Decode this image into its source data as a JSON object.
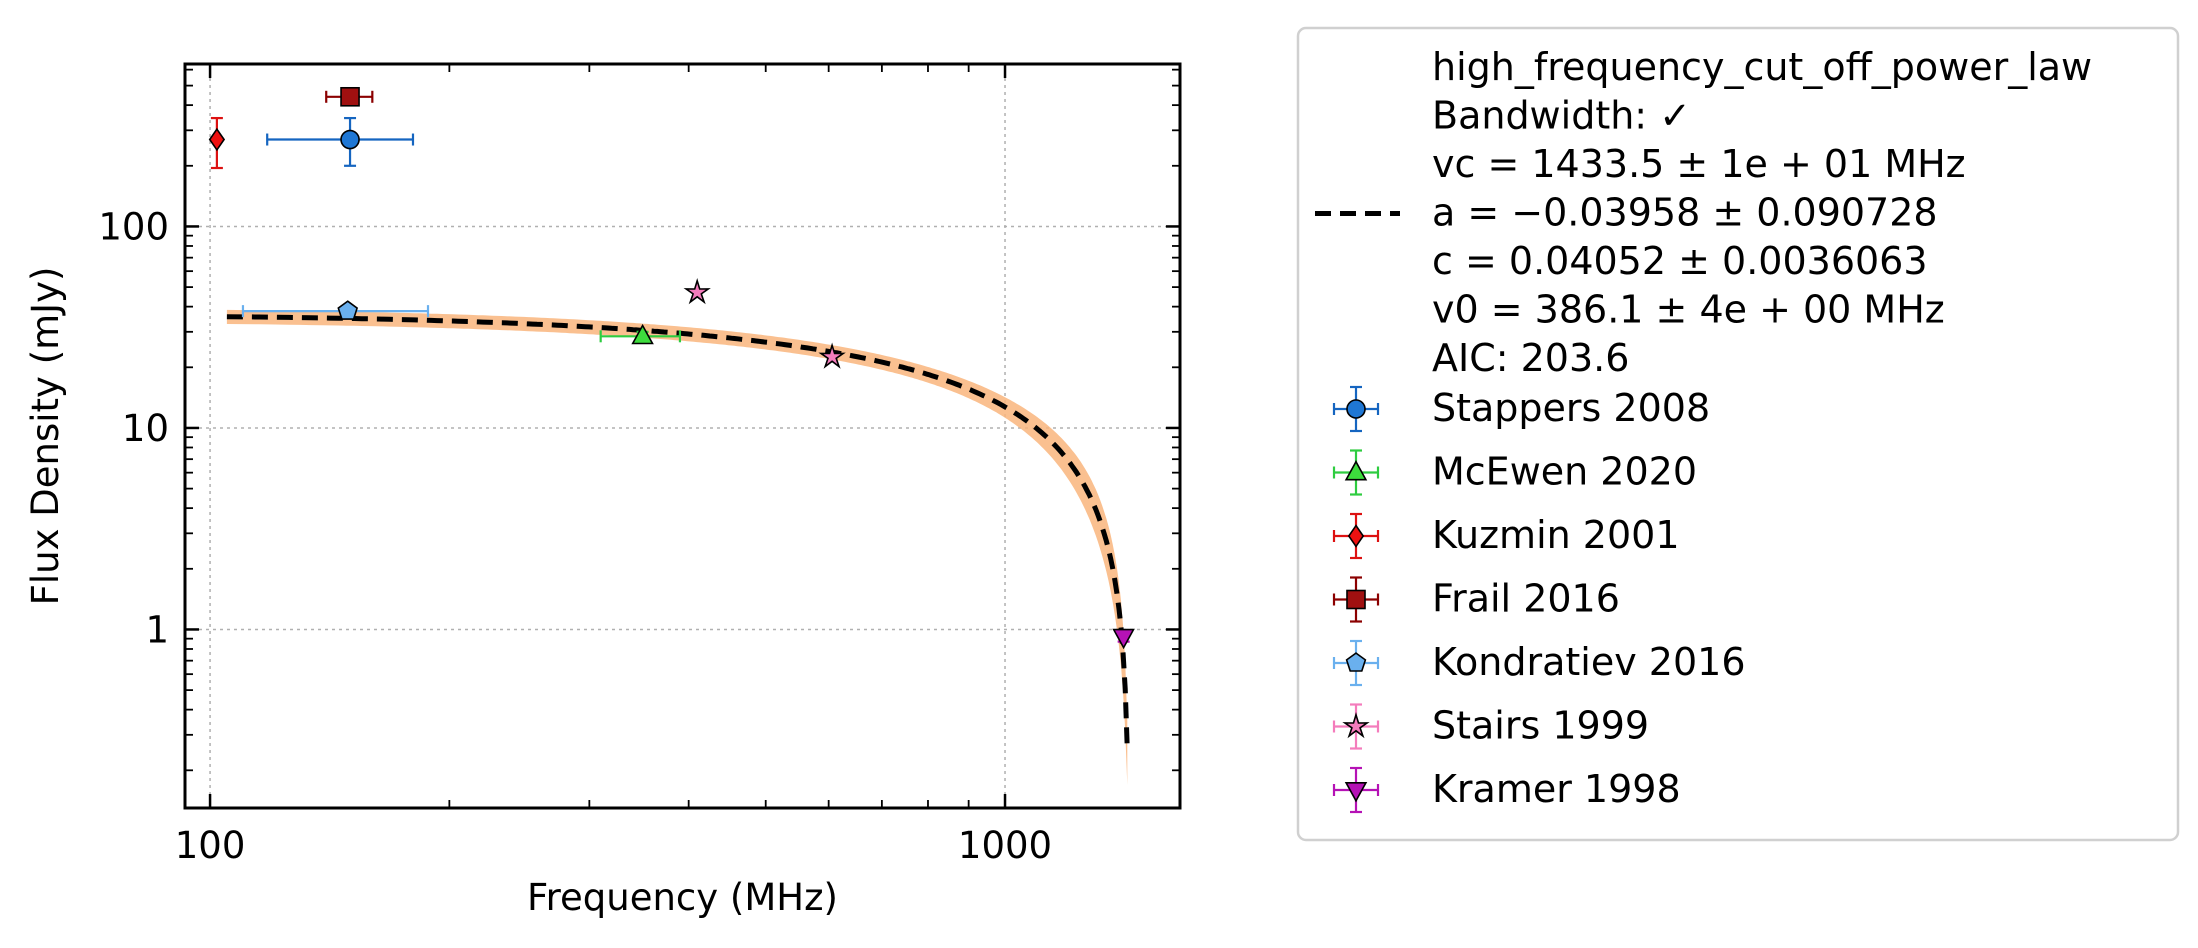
{
  "chart_data": {
    "type": "scatter",
    "xlabel": "Frequency (MHz)",
    "ylabel": "Flux Density (mJy)",
    "xscale": "log",
    "yscale": "log",
    "xlim": [
      93,
      1660
    ],
    "ylim": [
      0.13,
      640
    ],
    "x_ticks": [
      {
        "value": 100,
        "label": "100"
      },
      {
        "value": 1000,
        "label": "1000"
      }
    ],
    "y_ticks": [
      {
        "value": 1,
        "label": "1"
      },
      {
        "value": 10,
        "label": "10"
      },
      {
        "value": 100,
        "label": "100"
      }
    ],
    "grid": true,
    "legend_position": "outside right",
    "fit": {
      "name": "high_frequency_cut_off_power_law",
      "legend_lines": [
        "high_frequency_cut_off_power_law",
        "Bandwidth: ✓",
        "vc = 1433.5 ± 1e + 01 MHz",
        "a = −0.03958 ± 0.090728",
        "c = 0.04052 ± 0.0036063",
        "v0 = 386.1 ± 4e + 00 MHz",
        "AIC: 203.6"
      ],
      "vc": 1433.5,
      "a": -0.03958,
      "c": 0.04052,
      "v0": 386.1,
      "line_color": "#000000",
      "band_color": "#f9b57c",
      "band_fraction": 0.08
    },
    "series": [
      {
        "name": "Stappers 2008",
        "marker": "circle",
        "color": "#1f77d4",
        "ecolor": "#1565c0",
        "points": [
          {
            "x": 150,
            "y": 270,
            "xerr": [
              32,
              30
            ],
            "yerr": [
              70,
              75
            ]
          }
        ]
      },
      {
        "name": "McEwen 2020",
        "marker": "triangle-up",
        "color": "#3ddc3d",
        "ecolor": "#2ecc40",
        "points": [
          {
            "x": 350,
            "y": 28.5,
            "xerr": [
              40,
              40
            ],
            "yerr": [
              1.5,
              1.5
            ]
          }
        ]
      },
      {
        "name": "Kuzmin 2001",
        "marker": "diamond",
        "color": "#ee1111",
        "ecolor": "#dd1111",
        "points": [
          {
            "x": 102,
            "y": 270,
            "xerr": [
              0,
              0
            ],
            "yerr": [
              75,
              75
            ]
          }
        ]
      },
      {
        "name": "Frail 2016",
        "marker": "square",
        "color": "#a01010",
        "ecolor": "#8b0000",
        "points": [
          {
            "x": 150,
            "y": 440,
            "xerr": [
              10,
              10
            ],
            "yerr": [
              0,
              0
            ]
          }
        ]
      },
      {
        "name": "Kondratiev 2016",
        "marker": "pentagon",
        "color": "#6ab0ee",
        "ecolor": "#6ab0ee",
        "points": [
          {
            "x": 149,
            "y": 38,
            "xerr": [
              39,
              39
            ],
            "yerr": [
              2,
              2
            ]
          }
        ]
      },
      {
        "name": "Stairs 1999",
        "marker": "star",
        "color": "#f47cbc",
        "ecolor": "#f47cbc",
        "points": [
          {
            "x": 410,
            "y": 47
          },
          {
            "x": 606,
            "y": 22.5
          }
        ]
      },
      {
        "name": "Kramer 1998",
        "marker": "triangle-down",
        "color": "#b512b5",
        "ecolor": "#b512b5",
        "points": [
          {
            "x": 1410,
            "y": 0.92,
            "xerr": [
              0,
              0
            ],
            "yerr": [
              0.05,
              0.05
            ]
          }
        ]
      }
    ]
  }
}
